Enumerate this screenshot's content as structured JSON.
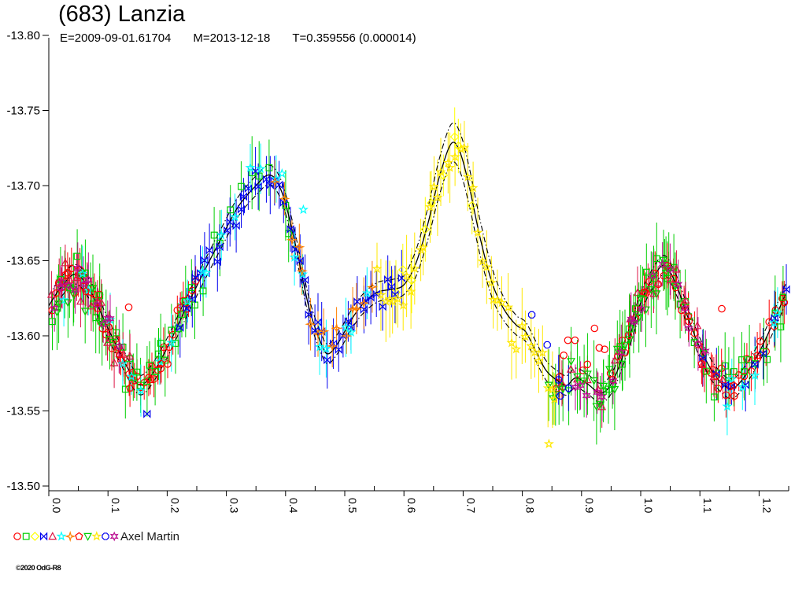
{
  "title": "(683) Lanzia",
  "subtitle": {
    "epoch": "E=2009-09-01.61704",
    "mean_date": "M=2013-12-18",
    "period": "T=0.359556 (0.000014)"
  },
  "legend": {
    "observer": "Axel Martin",
    "symbols": [
      {
        "name": "session-1-marker",
        "shape": "circle",
        "color": "#FF0000"
      },
      {
        "name": "session-2-marker",
        "shape": "square",
        "color": "#00CF00"
      },
      {
        "name": "session-3-marker",
        "shape": "diamond",
        "color": "#FFFF00"
      },
      {
        "name": "session-4-marker",
        "shape": "bowtie",
        "color": "#0000EE"
      },
      {
        "name": "session-5-marker",
        "shape": "triangle-up",
        "color": "#DC1445"
      },
      {
        "name": "session-6-marker",
        "shape": "star5",
        "color": "#00FFFF"
      },
      {
        "name": "session-7-marker",
        "shape": "star4",
        "color": "#FF8000"
      },
      {
        "name": "session-8-marker",
        "shape": "pentagon",
        "color": "#FF0000"
      },
      {
        "name": "session-9-marker",
        "shape": "triangle-down",
        "color": "#00CF00"
      },
      {
        "name": "session-10-marker",
        "shape": "star5",
        "color": "#FFE800"
      },
      {
        "name": "session-11-marker",
        "shape": "octagon",
        "color": "#0000EE"
      },
      {
        "name": "session-12-marker",
        "shape": "club",
        "color": "#BB0D90"
      }
    ]
  },
  "footer": {
    "credit": "©2020 OdG-R8"
  },
  "chart_data": {
    "type": "scatter",
    "title": "(683) Lanzia",
    "xlabel": "",
    "ylabel": "",
    "xlim": [
      0.0,
      1.25
    ],
    "ylim": [
      -13.5,
      -13.8
    ],
    "y_inverted": true,
    "grid": false,
    "legend_position": "bottom-left",
    "x_axis": {
      "tick_values": [
        0.0,
        0.1,
        0.2,
        0.3,
        0.4,
        0.5,
        0.6,
        0.7,
        0.8,
        0.9,
        1.0,
        1.1,
        1.2
      ],
      "tick_labels": [
        "0.0",
        "0.1",
        "0.2",
        "0.3",
        "0.4",
        "0.5",
        "0.6",
        "0.7",
        "0.8",
        "0.9",
        "1.0",
        "1.1",
        "1.2"
      ],
      "minor_tick_values": [
        0.05,
        0.15,
        0.25,
        0.35,
        0.45,
        0.55,
        0.65,
        0.75,
        0.85,
        0.95,
        1.05,
        1.15,
        1.25
      ]
    },
    "y_axis": {
      "tick_values": [
        -13.8,
        -13.75,
        -13.7,
        -13.65,
        -13.6,
        -13.55,
        -13.5
      ],
      "tick_labels": [
        "-13.80",
        "-13.75",
        "-13.70",
        "-13.65",
        "-13.60",
        "-13.55",
        "-13.50"
      ]
    },
    "model_curve": {
      "color": "#000000",
      "band_style": "dash-dot",
      "band_offset": {
        "base": 0.0065,
        "peak": 0.013,
        "peak_from": 0.6,
        "peak_to": 0.78
      },
      "points": [
        [
          0.0,
          -13.62
        ],
        [
          0.02,
          -13.632
        ],
        [
          0.045,
          -13.641
        ],
        [
          0.07,
          -13.63
        ],
        [
          0.1,
          -13.605
        ],
        [
          0.125,
          -13.585
        ],
        [
          0.15,
          -13.568
        ],
        [
          0.17,
          -13.572
        ],
        [
          0.2,
          -13.592
        ],
        [
          0.23,
          -13.617
        ],
        [
          0.26,
          -13.641
        ],
        [
          0.29,
          -13.664
        ],
        [
          0.32,
          -13.686
        ],
        [
          0.35,
          -13.7
        ],
        [
          0.37,
          -13.707
        ],
        [
          0.385,
          -13.703
        ],
        [
          0.4,
          -13.688
        ],
        [
          0.42,
          -13.655
        ],
        [
          0.44,
          -13.618
        ],
        [
          0.46,
          -13.595
        ],
        [
          0.472,
          -13.588
        ],
        [
          0.49,
          -13.596
        ],
        [
          0.51,
          -13.61
        ],
        [
          0.53,
          -13.621
        ],
        [
          0.555,
          -13.629
        ],
        [
          0.58,
          -13.631
        ],
        [
          0.6,
          -13.634
        ],
        [
          0.62,
          -13.648
        ],
        [
          0.64,
          -13.674
        ],
        [
          0.66,
          -13.706
        ],
        [
          0.68,
          -13.728
        ],
        [
          0.695,
          -13.722
        ],
        [
          0.71,
          -13.7
        ],
        [
          0.73,
          -13.663
        ],
        [
          0.75,
          -13.634
        ],
        [
          0.77,
          -13.617
        ],
        [
          0.79,
          -13.607
        ],
        [
          0.805,
          -13.603
        ],
        [
          0.82,
          -13.592
        ],
        [
          0.84,
          -13.577
        ],
        [
          0.86,
          -13.57
        ],
        [
          0.875,
          -13.567
        ],
        [
          0.89,
          -13.572
        ],
        [
          0.91,
          -13.568
        ],
        [
          0.93,
          -13.562
        ],
        [
          0.945,
          -13.565
        ],
        [
          0.96,
          -13.576
        ],
        [
          0.98,
          -13.598
        ],
        [
          1.0,
          -13.622
        ],
        [
          1.02,
          -13.638
        ],
        [
          1.04,
          -13.647
        ],
        [
          1.06,
          -13.634
        ],
        [
          1.08,
          -13.612
        ],
        [
          1.1,
          -13.592
        ],
        [
          1.125,
          -13.574
        ],
        [
          1.15,
          -13.565
        ],
        [
          1.17,
          -13.57
        ],
        [
          1.2,
          -13.589
        ],
        [
          1.225,
          -13.61
        ],
        [
          1.245,
          -13.628
        ]
      ]
    },
    "series": [
      {
        "name": "session-1",
        "symbol": "circle",
        "color": "#FF0000",
        "err": 0.012,
        "jitter": 0.008,
        "segments": [
          [
            0.003,
            0.25,
            46
          ],
          [
            0.95,
            1.248,
            42
          ],
          [
            0.852,
            0.872,
            3
          ]
        ],
        "outliers": [
          [
            0.135,
            -13.619
          ],
          [
            0.87,
            -13.587
          ],
          [
            0.877,
            -13.597
          ],
          [
            0.889,
            -13.597
          ],
          [
            0.902,
            -13.577
          ],
          [
            0.91,
            -13.581
          ],
          [
            0.922,
            -13.605
          ],
          [
            0.93,
            -13.592
          ],
          [
            0.939,
            -13.591
          ],
          [
            0.949,
            -13.575
          ],
          [
            1.137,
            -13.618
          ]
        ]
      },
      {
        "name": "session-2",
        "symbol": "square",
        "color": "#00CF00",
        "err": 0.02,
        "jitter": 0.011,
        "segments": [
          [
            0.003,
            0.25,
            36
          ],
          [
            0.25,
            0.42,
            10
          ],
          [
            0.93,
            1.248,
            34
          ]
        ],
        "outliers": []
      },
      {
        "name": "session-3",
        "symbol": "diamond",
        "color": "#FFFF00",
        "err": 0.018,
        "jitter": 0.008,
        "segments": [
          [
            0.58,
            0.72,
            9
          ]
        ],
        "outliers": []
      },
      {
        "name": "session-4",
        "symbol": "bowtie",
        "color": "#0000EE",
        "err": 0.016,
        "jitter": 0.008,
        "segments": [
          [
            0.22,
            0.6,
            46
          ],
          [
            1.1,
            1.248,
            9
          ]
        ],
        "outliers": [
          [
            0.166,
            -13.548
          ]
        ]
      },
      {
        "name": "session-5",
        "symbol": "triangle-up",
        "color": "#DC1445",
        "err": 0.014,
        "jitter": 0.009,
        "segments": [
          [
            0.003,
            0.14,
            15
          ],
          [
            0.86,
            1.14,
            20
          ]
        ],
        "outliers": []
      },
      {
        "name": "session-6",
        "symbol": "star5",
        "color": "#00FFFF",
        "err": 0.016,
        "jitter": 0.01,
        "segments": [
          [
            0.02,
            0.55,
            24
          ],
          [
            1.13,
            1.248,
            6
          ]
        ],
        "outliers": [
          [
            0.394,
            -13.708
          ],
          [
            0.43,
            -13.684
          ]
        ]
      },
      {
        "name": "session-7",
        "symbol": "star4",
        "color": "#FF8000",
        "err": 0.014,
        "jitter": 0.008,
        "segments": [
          [
            0.38,
            0.55,
            15
          ]
        ],
        "outliers": []
      },
      {
        "name": "session-8",
        "symbol": "pentagon",
        "color": "#FF0000",
        "err": 0.013,
        "jitter": 0.008,
        "segments": [
          [
            0.02,
            0.2,
            7
          ],
          [
            1.0,
            1.2,
            7
          ]
        ],
        "outliers": []
      },
      {
        "name": "session-9",
        "symbol": "triangle-down",
        "color": "#00CF00",
        "err": 0.022,
        "jitter": 0.01,
        "segments": [
          [
            0.003,
            0.1,
            8
          ],
          [
            0.84,
            1.06,
            32
          ]
        ],
        "outliers": []
      },
      {
        "name": "session-10",
        "symbol": "star5",
        "color": "#FFE800",
        "err": 0.022,
        "jitter": 0.012,
        "segments": [
          [
            0.55,
            0.86,
            42
          ]
        ],
        "outliers": [
          [
            0.845,
            -13.528
          ]
        ]
      },
      {
        "name": "session-11",
        "symbol": "octagon",
        "color": "#0000EE",
        "err": 0.015,
        "jitter": 0.006,
        "segments": [
          [
            0.86,
            0.88,
            2
          ]
        ],
        "outliers": [
          [
            0.816,
            -13.614
          ],
          [
            0.842,
            -13.594
          ],
          [
            0.864,
            -13.56
          ]
        ]
      },
      {
        "name": "session-12",
        "symbol": "club",
        "color": "#BB0D90",
        "err": 0.015,
        "jitter": 0.009,
        "segments": [
          [
            0.003,
            0.12,
            13
          ],
          [
            0.88,
            1.12,
            18
          ]
        ],
        "outliers": []
      }
    ]
  }
}
